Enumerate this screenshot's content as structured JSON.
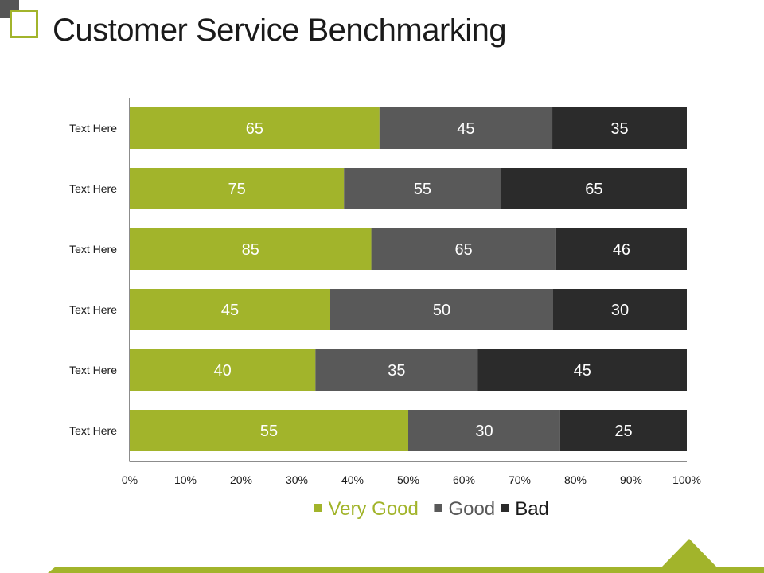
{
  "slide": {
    "title": "Customer Service Benchmarking"
  },
  "colors": {
    "very_good": "#a2b42b",
    "good": "#595959",
    "bad": "#2b2b2b",
    "accent": "#a2b42b"
  },
  "chart_data": {
    "type": "bar",
    "orientation": "horizontal",
    "stacked": "percent",
    "categories": [
      "Text Here",
      "Text Here",
      "Text Here",
      "Text Here",
      "Text Here",
      "Text Here"
    ],
    "series": [
      {
        "name": "Very Good",
        "values": [
          65,
          75,
          85,
          45,
          40,
          55
        ],
        "color": "#a2b42b"
      },
      {
        "name": "Good",
        "values": [
          45,
          55,
          65,
          50,
          35,
          30
        ],
        "color": "#595959"
      },
      {
        "name": "Bad",
        "values": [
          35,
          65,
          46,
          30,
          45,
          25
        ],
        "color": "#2b2b2b"
      }
    ],
    "x_ticks": [
      "0%",
      "10%",
      "20%",
      "30%",
      "40%",
      "50%",
      "60%",
      "70%",
      "80%",
      "90%",
      "100%"
    ],
    "xlim": [
      0,
      100
    ],
    "grid": false,
    "legend_position": "bottom"
  }
}
